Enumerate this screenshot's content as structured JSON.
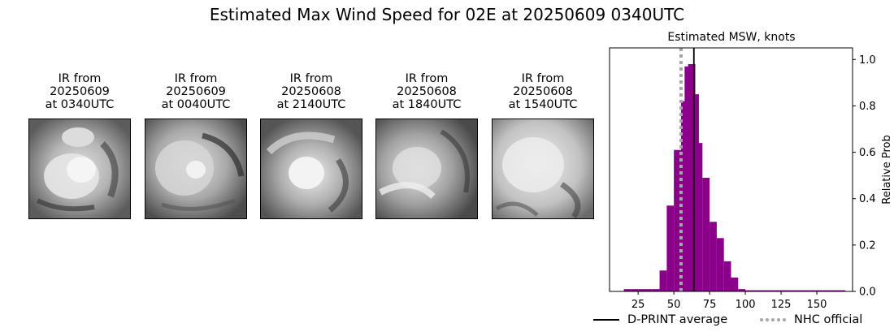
{
  "title": "Estimated Max Wind Speed for 02E at 20250609 0340UTC",
  "ir_panels": [
    {
      "line1": "IR from",
      "line2": "20250609",
      "line3": "at 0340UTC"
    },
    {
      "line1": "IR from",
      "line2": "20250609",
      "line3": "at 0040UTC"
    },
    {
      "line1": "IR from",
      "line2": "20250608",
      "line3": "at 2140UTC"
    },
    {
      "line1": "IR from",
      "line2": "20250608",
      "line3": "at 1840UTC"
    },
    {
      "line1": "IR from",
      "line2": "20250608",
      "line3": "at 1540UTC"
    }
  ],
  "legend": {
    "dprint": "D-PRINT average",
    "nhc": "NHC official"
  },
  "chart_data": {
    "type": "bar",
    "title": "Estimated MSW, knots",
    "xlabel": "",
    "ylabel": "Relative Prob",
    "xlim": [
      5,
      175
    ],
    "ylim": [
      0,
      1.05
    ],
    "x_ticks": [
      25,
      50,
      75,
      100,
      125,
      150
    ],
    "y_ticks": [
      0.0,
      0.2,
      0.4,
      0.6,
      0.8,
      1.0
    ],
    "y_axis_side": "right",
    "bin_width": 5,
    "bins": [
      {
        "x": 15,
        "value": 0.01
      },
      {
        "x": 20,
        "value": 0.01
      },
      {
        "x": 25,
        "value": 0.01
      },
      {
        "x": 30,
        "value": 0.01
      },
      {
        "x": 35,
        "value": 0.01
      },
      {
        "x": 40,
        "value": 0.09
      },
      {
        "x": 45,
        "value": 0.37
      },
      {
        "x": 50,
        "value": 0.61
      },
      {
        "x": 55,
        "value": 0.82
      },
      {
        "x": 57.5,
        "value": 0.97
      },
      {
        "x": 60,
        "value": 0.98
      },
      {
        "x": 62.5,
        "value": 0.85
      },
      {
        "x": 65,
        "value": 0.64
      },
      {
        "x": 70,
        "value": 0.49
      },
      {
        "x": 75,
        "value": 0.3
      },
      {
        "x": 80,
        "value": 0.23
      },
      {
        "x": 85,
        "value": 0.13
      },
      {
        "x": 90,
        "value": 0.06
      },
      {
        "x": 95,
        "value": 0.01
      },
      {
        "x": 100,
        "value": 0.005
      },
      {
        "x": 105,
        "value": 0.005
      },
      {
        "x": 110,
        "value": 0.005
      },
      {
        "x": 115,
        "value": 0.005
      },
      {
        "x": 120,
        "value": 0.005
      },
      {
        "x": 125,
        "value": 0.005
      },
      {
        "x": 130,
        "value": 0.005
      },
      {
        "x": 135,
        "value": 0.005
      },
      {
        "x": 140,
        "value": 0.005
      },
      {
        "x": 145,
        "value": 0.005
      },
      {
        "x": 150,
        "value": 0.005
      },
      {
        "x": 155,
        "value": 0.005
      },
      {
        "x": 160,
        "value": 0.005
      },
      {
        "x": 165,
        "value": 0.005
      }
    ],
    "dprint_average": 64,
    "nhc_official": 55,
    "colors": {
      "bars": "#8b008b",
      "dprint_line": "#000000",
      "nhc_line": "#a6a6a6"
    },
    "legend_placement": "bottom"
  }
}
